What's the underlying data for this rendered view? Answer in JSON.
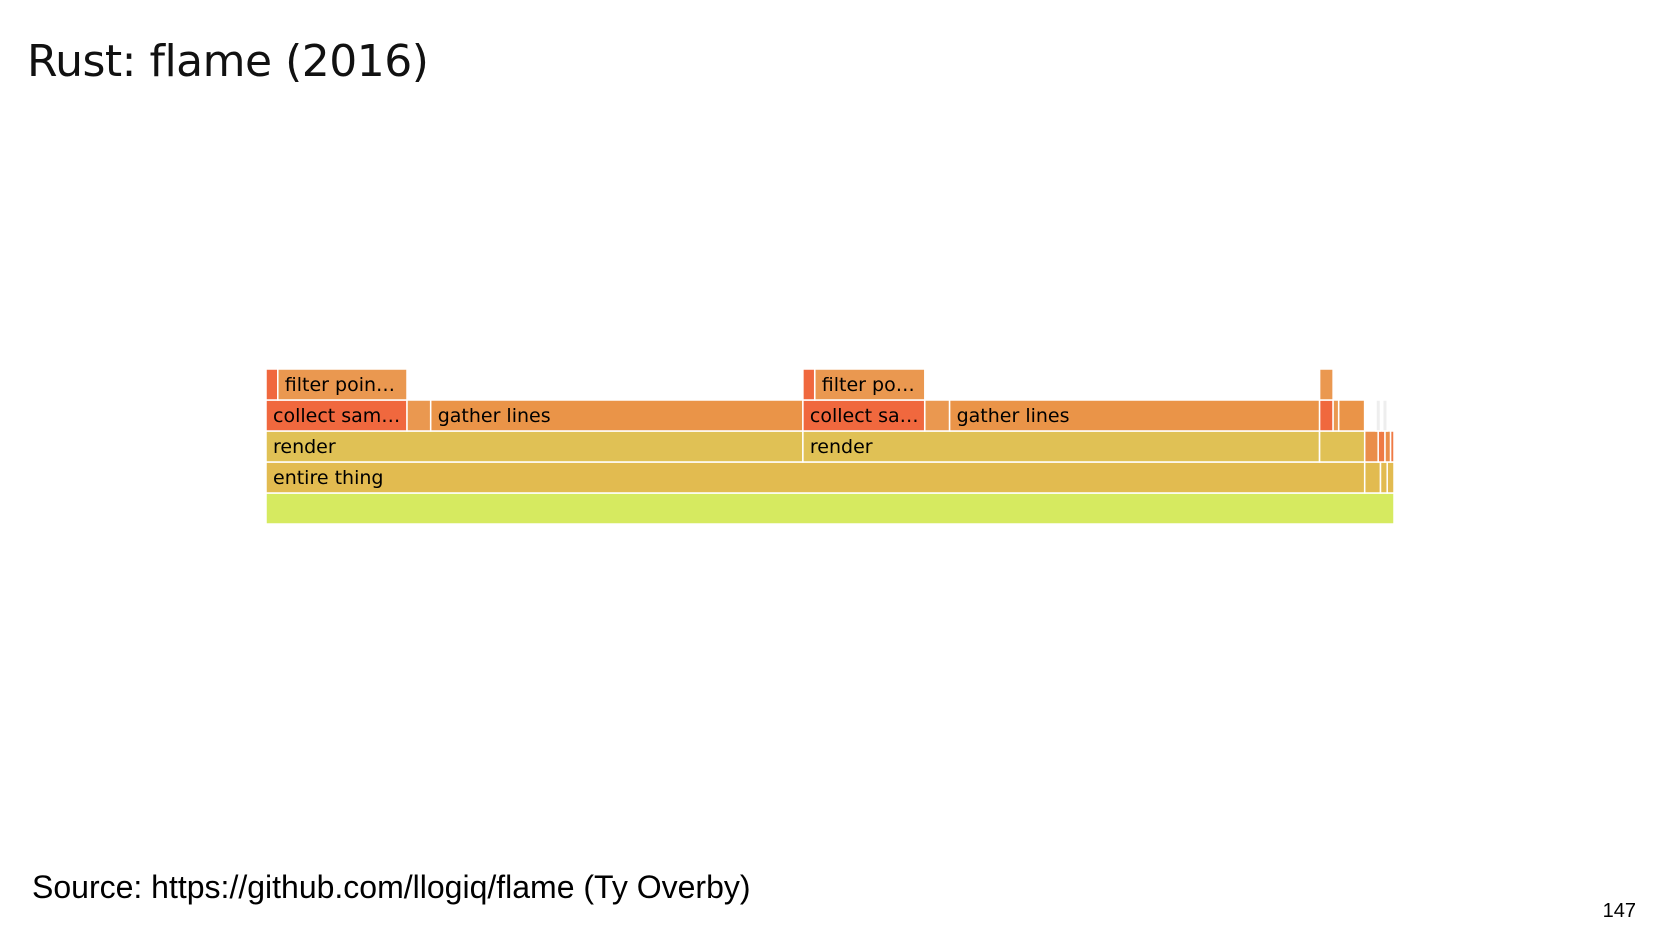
{
  "slide": {
    "title": "Rust: flame (2016)",
    "source": "Source: https://github.com/llogiq/flame (Ty Overby)",
    "page_number": "147"
  },
  "colors": {
    "frame_border": "#ffffff",
    "root_bar": "#d6ea60"
  },
  "flamegraph": {
    "depth_from_bottom_note": "",
    "frames": [
      {
        "id": "root",
        "label": "",
        "level": 0,
        "start": 0.0,
        "end": 1.0,
        "color": "#d6ea60"
      },
      {
        "id": "entire-thing",
        "label": "entire thing",
        "level": 1,
        "start": 0.0,
        "end": 0.974,
        "color": "#e2bb50"
      },
      {
        "id": "small-l1-a",
        "label": "",
        "level": 1,
        "start": 0.974,
        "end": 0.988,
        "color": "#e2bb50"
      },
      {
        "id": "small-l1-b",
        "label": "",
        "level": 1,
        "start": 0.988,
        "end": 0.994,
        "color": "#e2bb50"
      },
      {
        "id": "small-l1-c",
        "label": "",
        "level": 1,
        "start": 0.994,
        "end": 1.0,
        "color": "#e2bb50"
      },
      {
        "id": "render-1",
        "label": "render",
        "level": 2,
        "start": 0.0,
        "end": 0.476,
        "color": "#e0c155"
      },
      {
        "id": "render-2",
        "label": "render",
        "level": 2,
        "start": 0.476,
        "end": 0.934,
        "color": "#e0c155"
      },
      {
        "id": "small-l2-a",
        "label": "",
        "level": 2,
        "start": 0.934,
        "end": 0.974,
        "color": "#e0c155"
      },
      {
        "id": "small-l2-b",
        "label": "",
        "level": 2,
        "start": 0.974,
        "end": 0.986,
        "color": "#ea8e4a"
      },
      {
        "id": "small-l2-c",
        "label": "",
        "level": 2,
        "start": 0.986,
        "end": 0.992,
        "color": "#ef7a44"
      },
      {
        "id": "small-l2-d",
        "label": "",
        "level": 2,
        "start": 0.992,
        "end": 0.997,
        "color": "#ea8e4a"
      },
      {
        "id": "small-l2-e",
        "label": "",
        "level": 2,
        "start": 0.997,
        "end": 1.0,
        "color": "#ef7a44"
      },
      {
        "id": "collect-1",
        "label": "collect sam…",
        "level": 3,
        "start": 0.0,
        "end": 0.125,
        "color": "#f0683e"
      },
      {
        "id": "gap-1",
        "label": "",
        "level": 3,
        "start": 0.125,
        "end": 0.146,
        "color": "#ea9850"
      },
      {
        "id": "gather-1",
        "label": "gather lines",
        "level": 3,
        "start": 0.146,
        "end": 0.476,
        "color": "#ea9448"
      },
      {
        "id": "collect-2",
        "label": "collect sa…",
        "level": 3,
        "start": 0.476,
        "end": 0.584,
        "color": "#f0683e"
      },
      {
        "id": "gap-2",
        "label": "",
        "level": 3,
        "start": 0.584,
        "end": 0.606,
        "color": "#ea9850"
      },
      {
        "id": "gather-2",
        "label": "gather lines",
        "level": 3,
        "start": 0.606,
        "end": 0.934,
        "color": "#ea9448"
      },
      {
        "id": "small-l3-a",
        "label": "",
        "level": 3,
        "start": 0.934,
        "end": 0.946,
        "color": "#f0683e"
      },
      {
        "id": "small-l3-b",
        "label": "",
        "level": 3,
        "start": 0.946,
        "end": 0.951,
        "color": "#ea9850"
      },
      {
        "id": "small-l3-c",
        "label": "",
        "level": 3,
        "start": 0.951,
        "end": 0.974,
        "color": "#ea9448"
      },
      {
        "id": "small-l3-d",
        "label": "",
        "level": 3,
        "start": 0.984,
        "end": 0.988,
        "color": "#eeeeee"
      },
      {
        "id": "small-l3-e",
        "label": "",
        "level": 3,
        "start": 0.99,
        "end": 0.994,
        "color": "#eeeeee"
      },
      {
        "id": "filter-1-stub",
        "label": "",
        "level": 4,
        "start": 0.0,
        "end": 0.0105,
        "color": "#f0683e"
      },
      {
        "id": "filter-1",
        "label": "filter poin…",
        "level": 4,
        "start": 0.0105,
        "end": 0.125,
        "color": "#ea9850"
      },
      {
        "id": "filter-2-stub",
        "label": "",
        "level": 4,
        "start": 0.476,
        "end": 0.4865,
        "color": "#f0683e"
      },
      {
        "id": "filter-2",
        "label": "filter po…",
        "level": 4,
        "start": 0.4865,
        "end": 0.584,
        "color": "#ea9850"
      },
      {
        "id": "small-l4-a",
        "label": "",
        "level": 4,
        "start": 0.934,
        "end": 0.946,
        "color": "#ea9850"
      }
    ]
  }
}
